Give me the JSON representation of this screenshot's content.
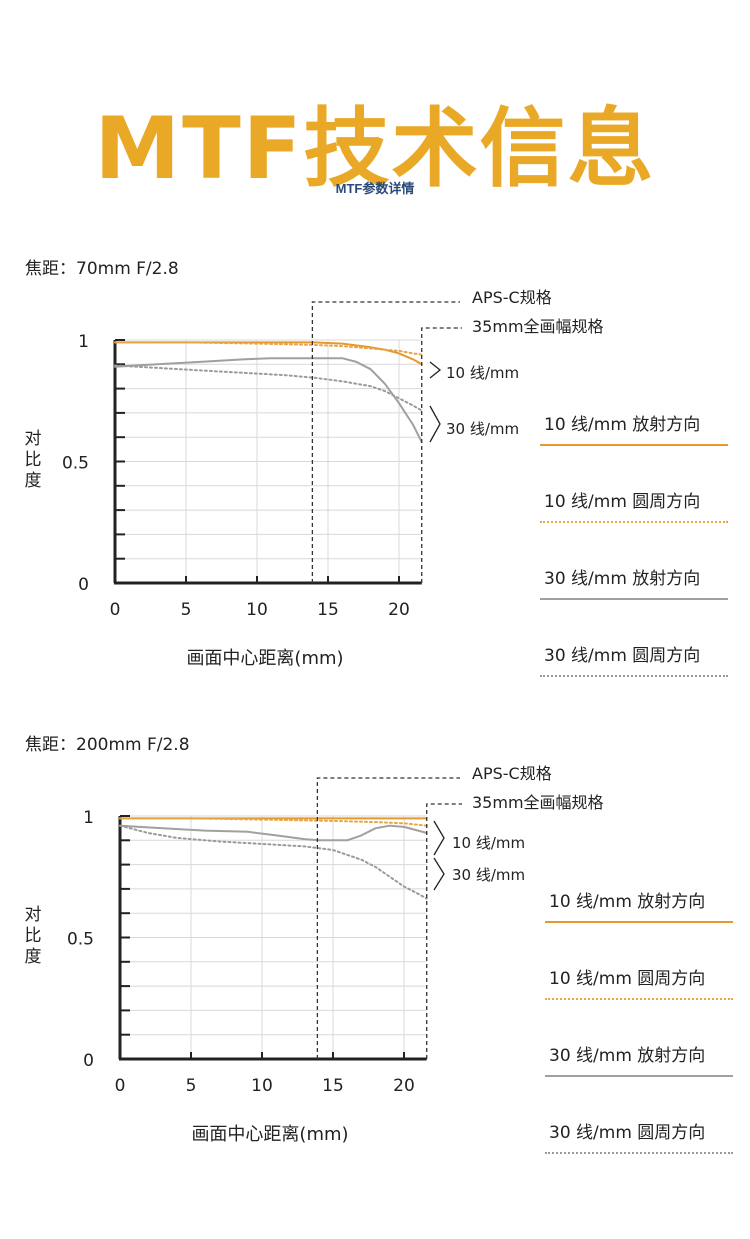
{
  "header": {
    "title": "MTF技术信息",
    "subtitle": "MTF参数详情"
  },
  "colors": {
    "title": "#E9A825",
    "orange": "#E5992E",
    "orange_dotted": "#E8A544",
    "gray": "#A0A0A0",
    "gray_dotted": "#9A9A9A"
  },
  "legend": [
    {
      "label": "10 线/mm  放射方向",
      "style": "orange-solid"
    },
    {
      "label": "10 线/mm  圆周方向",
      "style": "orange-dotted"
    },
    {
      "label": "30 线/mm  放射方向",
      "style": "gray-solid"
    },
    {
      "label": "30 线/mm  圆周方向",
      "style": "gray-dotted"
    }
  ],
  "chart_data": [
    {
      "type": "line",
      "focal_label": "焦距：70mm    F/2.8",
      "ylabel": "对比度",
      "xlabel": "画面中心距离(mm)",
      "x_ticks": [
        "0",
        "5",
        "10",
        "15",
        "20"
      ],
      "y_ticks": [
        "0",
        "0.5",
        "1"
      ],
      "xlim": [
        0,
        21.6
      ],
      "ylim": [
        0,
        1
      ],
      "markers": [
        {
          "x": 13.9,
          "label": "APS-C规格"
        },
        {
          "x": 21.6,
          "label": "35mm全画幅规格"
        }
      ],
      "group_labels": [
        "10 线/mm",
        "30 线/mm"
      ],
      "series": [
        {
          "name": "10 线/mm  放射方向",
          "style": "orange-solid",
          "x": [
            0,
            5,
            10,
            14,
            16,
            18,
            19,
            20,
            21,
            21.6
          ],
          "y": [
            0.99,
            0.99,
            0.99,
            0.99,
            0.985,
            0.97,
            0.96,
            0.945,
            0.92,
            0.9
          ]
        },
        {
          "name": "10 线/mm  圆周方向",
          "style": "orange-dotted",
          "x": [
            0,
            5,
            10,
            14,
            16,
            18,
            20,
            21,
            21.6
          ],
          "y": [
            0.99,
            0.99,
            0.985,
            0.98,
            0.975,
            0.965,
            0.955,
            0.945,
            0.94
          ]
        },
        {
          "name": "30 线/mm  放射方向",
          "style": "gray-solid",
          "x": [
            0,
            3,
            6,
            9,
            11,
            14,
            16,
            17,
            18,
            19,
            20,
            21,
            21.6
          ],
          "y": [
            0.89,
            0.9,
            0.91,
            0.92,
            0.925,
            0.925,
            0.925,
            0.91,
            0.88,
            0.82,
            0.74,
            0.65,
            0.58
          ]
        },
        {
          "name": "30 线/mm  圆周方向",
          "style": "gray-dotted",
          "x": [
            0,
            3,
            6,
            9,
            12,
            14,
            16,
            18,
            19,
            20,
            21,
            21.6
          ],
          "y": [
            0.895,
            0.885,
            0.875,
            0.865,
            0.855,
            0.845,
            0.83,
            0.81,
            0.79,
            0.76,
            0.73,
            0.71
          ]
        }
      ]
    },
    {
      "type": "line",
      "focal_label": "焦距：200mm    F/2.8",
      "ylabel": "对比度",
      "xlabel": "画面中心距离(mm)",
      "x_ticks": [
        "0",
        "5",
        "10",
        "15",
        "20"
      ],
      "y_ticks": [
        "0",
        "0.5",
        "1"
      ],
      "xlim": [
        0,
        21.6
      ],
      "ylim": [
        0,
        1
      ],
      "markers": [
        {
          "x": 13.9,
          "label": "APS-C规格"
        },
        {
          "x": 21.6,
          "label": "35mm全画幅规格"
        }
      ],
      "group_labels": [
        "10 线/mm",
        "30 线/mm"
      ],
      "series": [
        {
          "name": "10 线/mm  放射方向",
          "style": "orange-solid",
          "x": [
            0,
            5,
            10,
            15,
            20,
            21.6
          ],
          "y": [
            0.99,
            0.99,
            0.99,
            0.99,
            0.99,
            0.99
          ]
        },
        {
          "name": "10 线/mm  圆周方向",
          "style": "orange-dotted",
          "x": [
            0,
            5,
            10,
            15,
            18,
            20,
            21.6
          ],
          "y": [
            0.99,
            0.99,
            0.985,
            0.98,
            0.975,
            0.97,
            0.96
          ]
        },
        {
          "name": "30 线/mm  放射方向",
          "style": "gray-solid",
          "x": [
            0,
            3,
            6,
            9,
            11,
            13,
            14,
            15,
            16,
            17,
            18,
            19,
            20,
            21,
            21.6
          ],
          "y": [
            0.96,
            0.95,
            0.94,
            0.935,
            0.92,
            0.905,
            0.9,
            0.9,
            0.9,
            0.92,
            0.95,
            0.96,
            0.955,
            0.94,
            0.93
          ]
        },
        {
          "name": "30 线/mm  圆周方向",
          "style": "gray-dotted",
          "x": [
            0,
            2,
            4,
            7,
            10,
            13,
            15,
            17,
            18,
            19,
            20,
            21,
            21.6
          ],
          "y": [
            0.96,
            0.93,
            0.91,
            0.895,
            0.885,
            0.875,
            0.86,
            0.82,
            0.79,
            0.75,
            0.71,
            0.68,
            0.66
          ]
        }
      ]
    }
  ]
}
